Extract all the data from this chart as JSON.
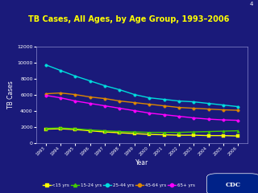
{
  "title": "TB Cases, All Ages, by Age Group, 1993–2006",
  "xlabel": "Year",
  "ylabel": "TB Cases",
  "background_color": "#1a1a7a",
  "plot_bg_color": "#1a1a7a",
  "title_color": "#ffff00",
  "axis_label_color": "#ffffff",
  "tick_color": "#ffffff",
  "spine_color": "#8888cc",
  "years": [
    1993,
    1994,
    1995,
    1996,
    1997,
    1998,
    1999,
    2000,
    2001,
    2002,
    2003,
    2004,
    2005,
    2006
  ],
  "series": {
    "<15 yrs": [
      1700,
      1750,
      1650,
      1500,
      1350,
      1250,
      1150,
      1050,
      1000,
      950,
      950,
      900,
      900,
      850
    ],
    "15-24 yrs": [
      1800,
      1850,
      1750,
      1600,
      1500,
      1400,
      1350,
      1300,
      1300,
      1300,
      1350,
      1400,
      1450,
      1500
    ],
    "25-44 yrs": [
      9700,
      9000,
      8300,
      7700,
      7100,
      6600,
      6000,
      5600,
      5400,
      5200,
      5100,
      4900,
      4700,
      4500
    ],
    "45-64 yrs": [
      6100,
      6200,
      6000,
      5700,
      5500,
      5200,
      5000,
      4800,
      4600,
      4400,
      4300,
      4200,
      4100,
      4050
    ],
    "65+ yrs": [
      5900,
      5600,
      5200,
      4900,
      4600,
      4300,
      4000,
      3700,
      3500,
      3300,
      3100,
      2950,
      2850,
      2800
    ]
  },
  "colors": {
    "<15 yrs": "#ffff00",
    "15-24 yrs": "#44cc00",
    "25-44 yrs": "#00dddd",
    "45-64 yrs": "#dd8800",
    "65+ yrs": "#ff00ff"
  },
  "markers": {
    "<15 yrs": "s",
    "15-24 yrs": "^",
    "25-44 yrs": "o",
    "45-64 yrs": "o",
    "65+ yrs": "o"
  },
  "ylim": [
    0,
    12000
  ],
  "yticks": [
    0,
    2000,
    4000,
    6000,
    8000,
    10000,
    12000
  ],
  "slide_number": "4",
  "legend_text_color": "#ffffff",
  "cdc_box_color": "#002288"
}
